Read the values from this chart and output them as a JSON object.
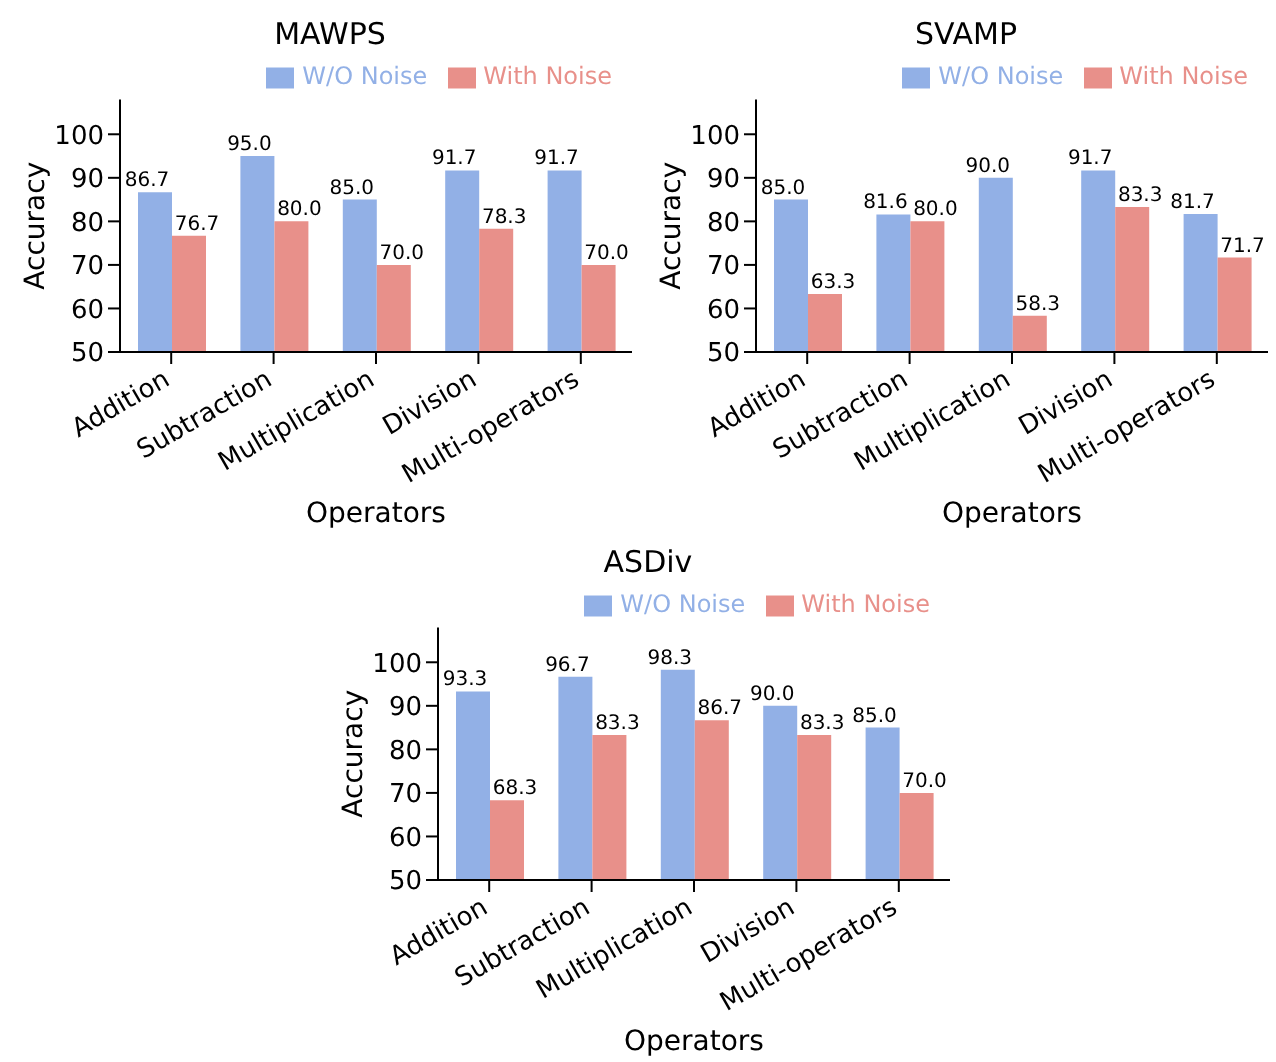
{
  "chart_data": [
    {
      "type": "bar",
      "title": "MAWPS",
      "xlabel": "Operators",
      "ylabel": "Accuracy",
      "categories": [
        "Addition",
        "Subtraction",
        "Multiplication",
        "Division",
        "Multi-operators"
      ],
      "series": [
        {
          "name": "W/O Noise",
          "color": "#92b0e6",
          "values": [
            86.7,
            95.0,
            85.0,
            91.7,
            91.7
          ],
          "value_labels": [
            "86.7",
            "95.0",
            "85.0",
            "91.7",
            "91.7"
          ]
        },
        {
          "name": "With Noise",
          "color": "#e8908a",
          "values": [
            76.7,
            80.0,
            70.0,
            78.3,
            70.0
          ],
          "value_labels": [
            "76.7",
            "80.0",
            "70.0",
            "78.3",
            "70.0"
          ]
        }
      ],
      "ylim": [
        50,
        108
      ],
      "yticks": [
        50,
        60,
        70,
        80,
        90,
        100
      ],
      "legend": "top right"
    },
    {
      "type": "bar",
      "title": "SVAMP",
      "xlabel": "Operators",
      "ylabel": "Accuracy",
      "categories": [
        "Addition",
        "Subtraction",
        "Multiplication",
        "Division",
        "Multi-operators"
      ],
      "series": [
        {
          "name": "W/O Noise",
          "color": "#92b0e6",
          "values": [
            85.0,
            81.6,
            90.0,
            91.7,
            81.7
          ],
          "value_labels": [
            "85.0",
            "81.6",
            "90.0",
            "91.7",
            "81.7"
          ]
        },
        {
          "name": "With Noise",
          "color": "#e8908a",
          "values": [
            63.3,
            80.0,
            58.3,
            83.3,
            71.7
          ],
          "value_labels": [
            "63.3",
            "80.0",
            "58.3",
            "83.3",
            "71.7"
          ]
        }
      ],
      "ylim": [
        50,
        108
      ],
      "yticks": [
        50,
        60,
        70,
        80,
        90,
        100
      ],
      "legend": "top right"
    },
    {
      "type": "bar",
      "title": "ASDiv",
      "xlabel": "Operators",
      "ylabel": "Accuracy",
      "categories": [
        "Addition",
        "Subtraction",
        "Multiplication",
        "Division",
        "Multi-operators"
      ],
      "series": [
        {
          "name": "W/O Noise",
          "color": "#92b0e6",
          "values": [
            93.3,
            96.7,
            98.3,
            90.0,
            85.0
          ],
          "value_labels": [
            "93.3",
            "96.7",
            "98.3",
            "90.0",
            "85.0"
          ]
        },
        {
          "name": "With Noise",
          "color": "#e8908a",
          "values": [
            68.3,
            83.3,
            86.7,
            83.3,
            70.0
          ],
          "value_labels": [
            "68.3",
            "83.3",
            "86.7",
            "83.3",
            "70.0"
          ]
        }
      ],
      "ylim": [
        50,
        108
      ],
      "yticks": [
        50,
        60,
        70,
        80,
        90,
        100
      ],
      "legend": "top right"
    }
  ]
}
